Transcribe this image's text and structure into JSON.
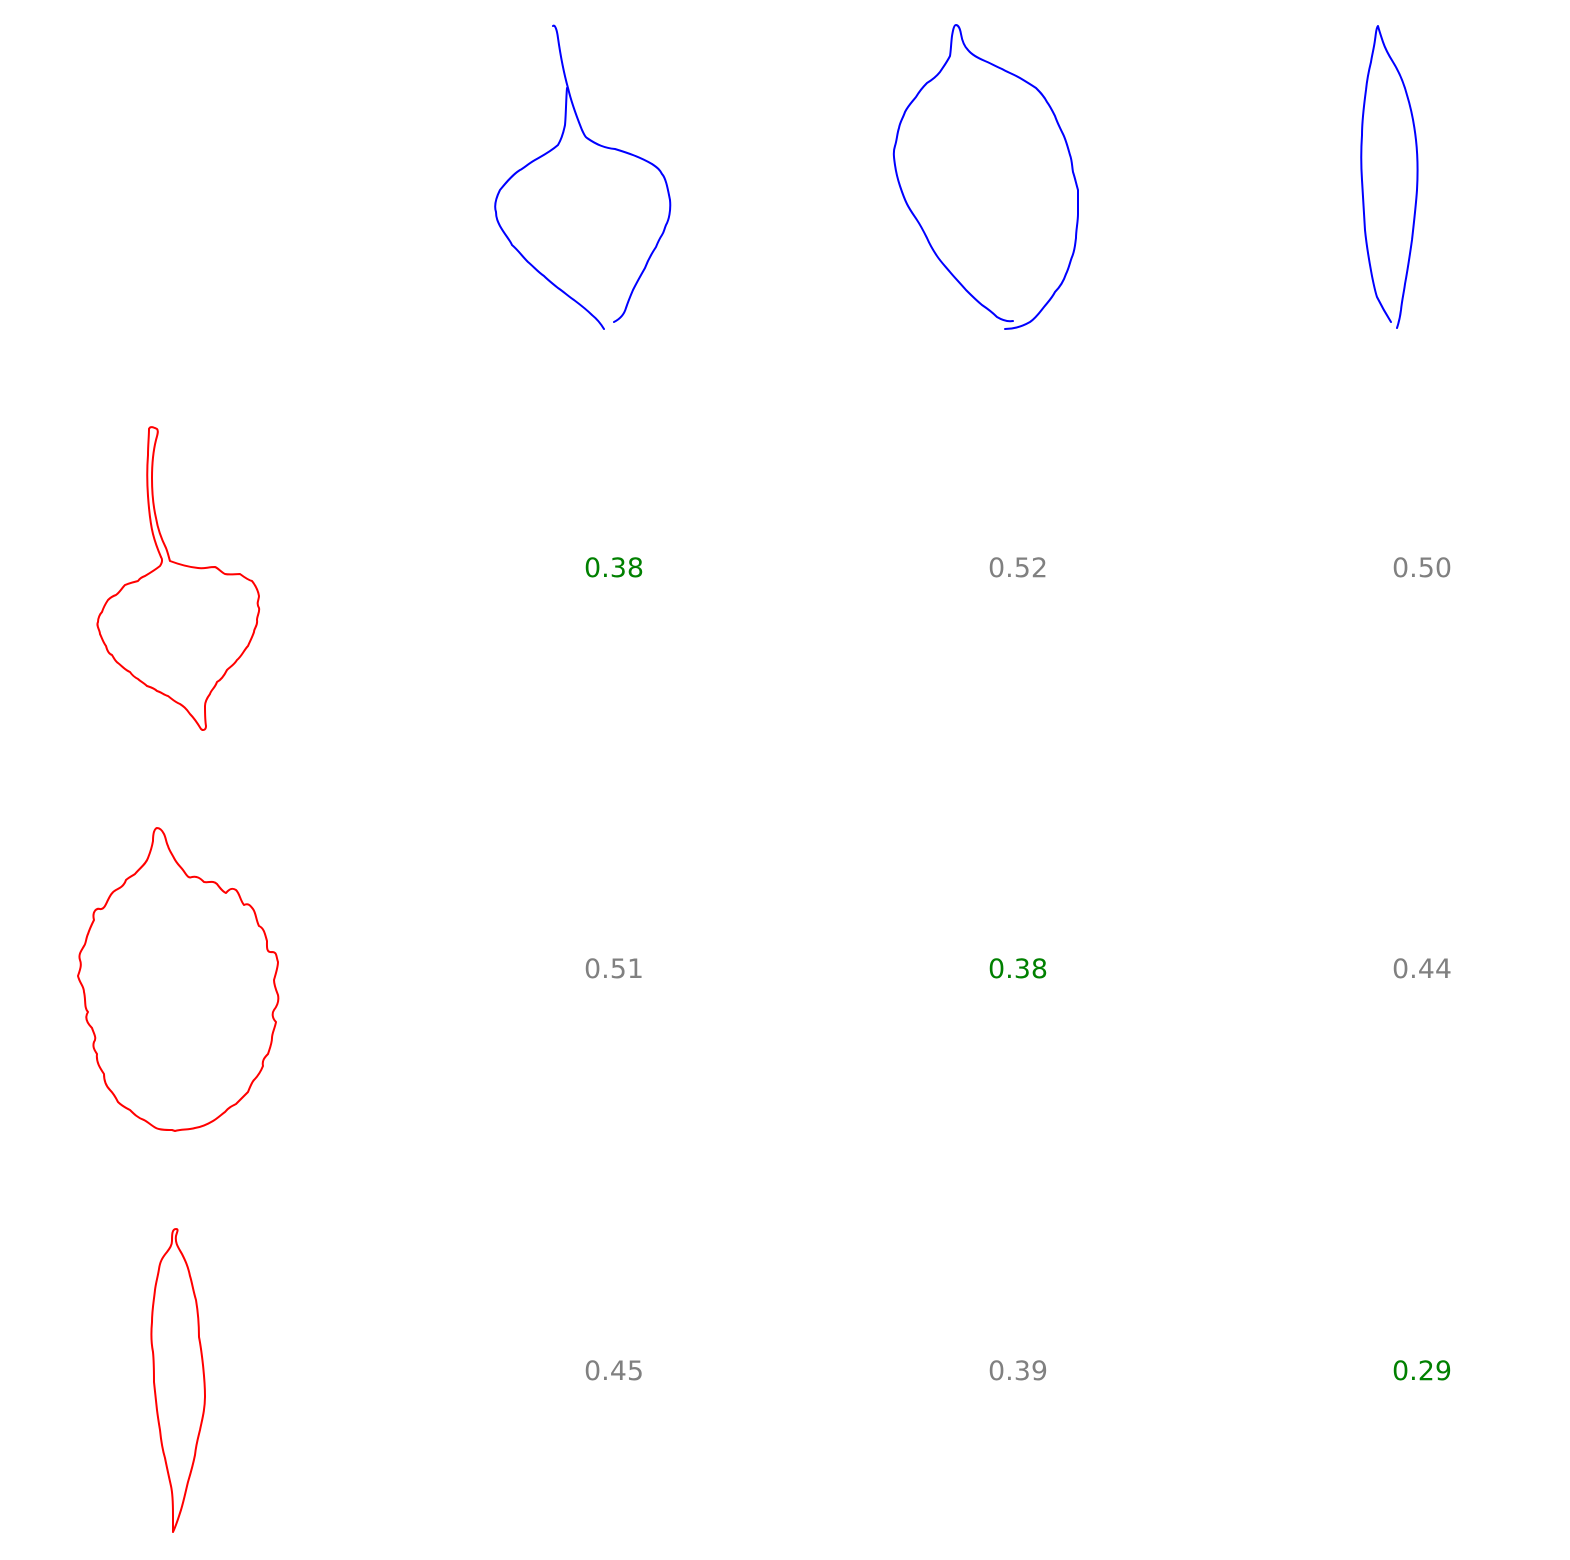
{
  "colors": {
    "column_contours": "#0000ff",
    "row_contours": "#ff0000",
    "best_match_score": "#008000",
    "other_score": "#808080"
  },
  "column_shapes": [
    {
      "icon": "leaf-heart-long-stalk-icon"
    },
    {
      "icon": "leaf-oval-serrated-icon"
    },
    {
      "icon": "leaf-lanceolate-icon"
    }
  ],
  "row_shapes": [
    {
      "icon": "leaf-heart-long-stalk-icon"
    },
    {
      "icon": "leaf-oval-serrated-icon"
    },
    {
      "icon": "leaf-lanceolate-icon"
    }
  ],
  "scores": [
    [
      {
        "text": "0.38",
        "best": true
      },
      {
        "text": "0.52",
        "best": false
      },
      {
        "text": "0.50",
        "best": false
      }
    ],
    [
      {
        "text": "0.51",
        "best": false
      },
      {
        "text": "0.38",
        "best": true
      },
      {
        "text": "0.44",
        "best": false
      }
    ],
    [
      {
        "text": "0.45",
        "best": false
      },
      {
        "text": "0.39",
        "best": false
      },
      {
        "text": "0.29",
        "best": true
      }
    ]
  ]
}
